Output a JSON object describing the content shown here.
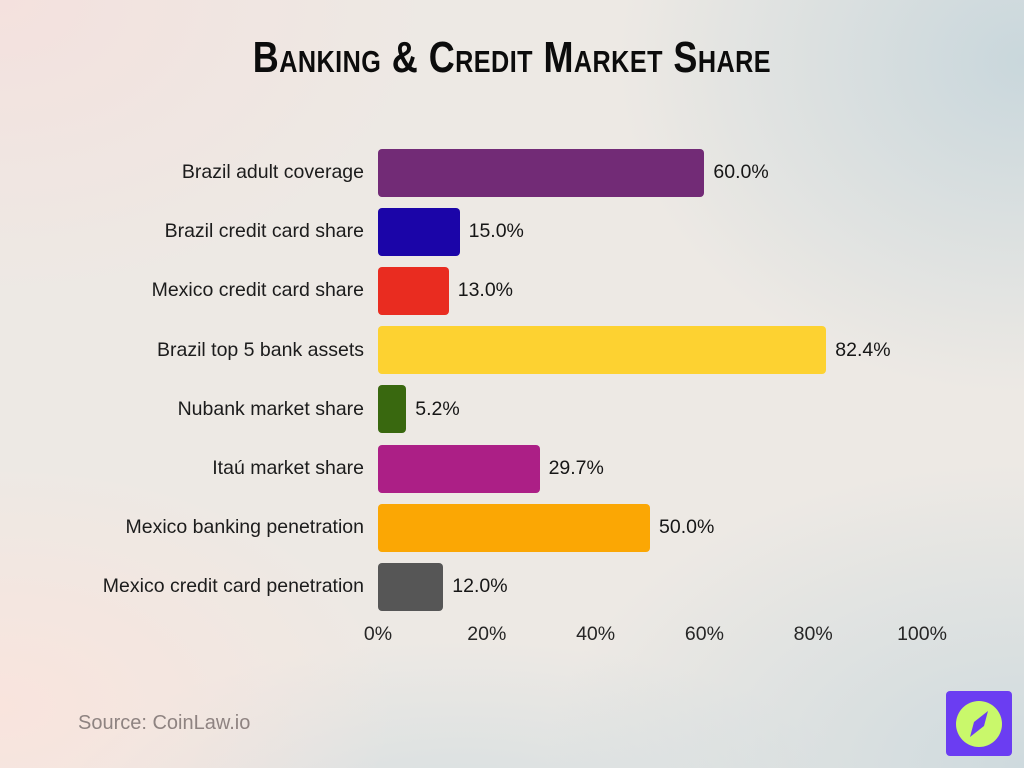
{
  "title": "Banking & Credit Market Share",
  "source": "Source: CoinLaw.io",
  "logo": {
    "name": "coinlaw-compass-logo",
    "bg_color": "#6B3DF2",
    "circle_color": "#C9F86B"
  },
  "chart_data": {
    "type": "bar",
    "orientation": "horizontal",
    "title": "Banking & Credit Market Share",
    "categories": [
      "Brazil adult coverage",
      "Brazil credit card share",
      "Mexico credit card share",
      "Brazil top 5 bank assets",
      "Nubank market share",
      "Itaú market share",
      "Mexico banking penetration",
      "Mexico credit card penetration"
    ],
    "values": [
      60.0,
      15.0,
      13.0,
      82.4,
      5.2,
      29.7,
      50.0,
      12.0
    ],
    "value_labels": [
      "60.0%",
      "15.0%",
      "13.0%",
      "82.4%",
      "5.2%",
      "29.7%",
      "50.0%",
      "12.0%"
    ],
    "bar_colors": [
      "#722B76",
      "#1B05A8",
      "#E92C20",
      "#FDD231",
      "#39680F",
      "#AC1F86",
      "#FBA704",
      "#565656"
    ],
    "xlabel": "",
    "ylabel": "",
    "xlim": [
      0,
      100
    ],
    "x_tick_values": [
      0,
      20,
      40,
      60,
      80,
      100
    ],
    "x_tick_labels": [
      "0%",
      "20%",
      "40%",
      "60%",
      "80%",
      "100%"
    ],
    "grid": false,
    "legend": false
  }
}
